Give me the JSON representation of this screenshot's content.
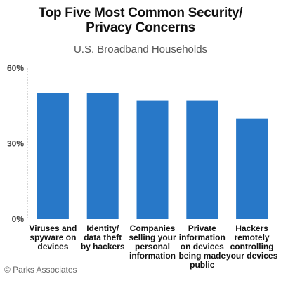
{
  "chart_data": {
    "type": "bar",
    "title_lines": [
      "Top Five Most Common Security/",
      "Privacy Concerns"
    ],
    "subtitle": "U.S. Broadband Households",
    "categories": [
      [
        "Viruses and",
        "spyware on",
        "devices"
      ],
      [
        "Identity/",
        "data theft",
        "by hackers"
      ],
      [
        "Companies",
        "selling your",
        "personal",
        "information"
      ],
      [
        "Private",
        "information",
        "on devices",
        "being made",
        "public"
      ],
      [
        "Hackers",
        "remotely",
        "controlling",
        "your devices"
      ]
    ],
    "values": [
      50,
      50,
      47,
      47,
      40
    ],
    "ylim": [
      0,
      60
    ],
    "yticks": [
      0,
      30,
      60
    ],
    "ytick_labels": [
      "0%",
      "30%",
      "60%"
    ],
    "bar_color": "#2878c8",
    "grid": false
  },
  "footer": {
    "credit": "© Parks Associates"
  }
}
